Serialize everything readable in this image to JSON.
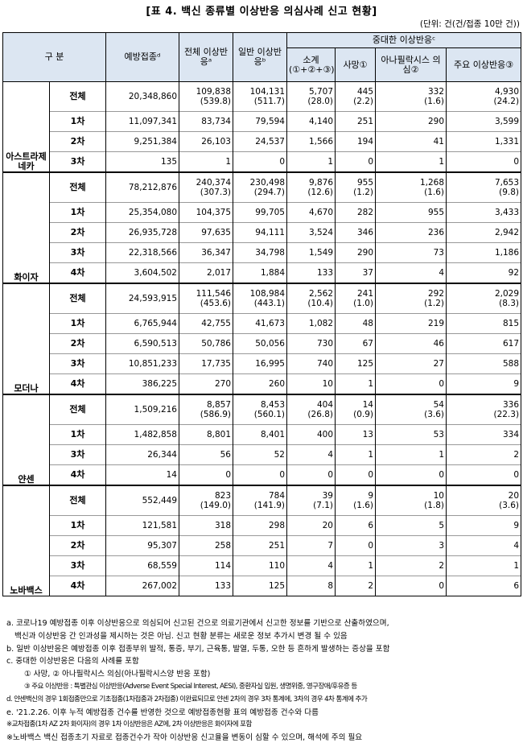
{
  "title": "[표 4. 백신 종류별 이상반응 의심사례 신고 현황]",
  "unit": "(단위: 건(건/접종 10만 건))",
  "headers": {
    "category": "구    분",
    "vaccinations": "예방접종ᵈ",
    "total": "전체 이상반응ᵃ",
    "general": "일반 이상반응ᵇ",
    "serious": "중대한 이상반응ᶜ",
    "subtotal": "소계 (①+②+③)",
    "death": "사망①",
    "anaphylaxis": "아나필락시스 의심②",
    "major": "주요 이상반응③"
  },
  "groups": [
    {
      "name": "아스트라제네카",
      "total": {
        "label": "전체",
        "vaccinations": "20,348,860",
        "total": "109,838",
        "total_rate": "(539.8)",
        "general": "104,131",
        "general_rate": "(511.7)",
        "subtotal": "5,707",
        "subtotal_rate": "(28.0)",
        "death": "445",
        "death_rate": "(2.2)",
        "anaphylaxis": "332",
        "anaphylaxis_rate": "(1.6)",
        "major": "4,930",
        "major_rate": "(24.2)"
      },
      "rows": [
        {
          "label": "1차",
          "vaccinations": "11,097,341",
          "total": "83,734",
          "general": "79,594",
          "subtotal": "4,140",
          "death": "251",
          "anaphylaxis": "290",
          "major": "3,599"
        },
        {
          "label": "2차",
          "vaccinations": "9,251,384",
          "total": "26,103",
          "general": "24,537",
          "subtotal": "1,566",
          "death": "194",
          "anaphylaxis": "41",
          "major": "1,331"
        },
        {
          "label": "3차",
          "vaccinations": "135",
          "total": "1",
          "general": "0",
          "subtotal": "1",
          "death": "0",
          "anaphylaxis": "1",
          "major": "0"
        }
      ]
    },
    {
      "name": "화이자",
      "total": {
        "label": "전체",
        "vaccinations": "78,212,876",
        "total": "240,374",
        "total_rate": "(307.3)",
        "general": "230,498",
        "general_rate": "(294.7)",
        "subtotal": "9,876",
        "subtotal_rate": "(12.6)",
        "death": "955",
        "death_rate": "(1.2)",
        "anaphylaxis": "1,268",
        "anaphylaxis_rate": "(1.6)",
        "major": "7,653",
        "major_rate": "(9.8)"
      },
      "rows": [
        {
          "label": "1차",
          "vaccinations": "25,354,080",
          "total": "104,375",
          "general": "99,705",
          "subtotal": "4,670",
          "death": "282",
          "anaphylaxis": "955",
          "major": "3,433"
        },
        {
          "label": "2차",
          "vaccinations": "26,935,728",
          "total": "97,635",
          "general": "94,111",
          "subtotal": "3,524",
          "death": "346",
          "anaphylaxis": "236",
          "major": "2,942"
        },
        {
          "label": "3차",
          "vaccinations": "22,318,566",
          "total": "36,347",
          "general": "34,798",
          "subtotal": "1,549",
          "death": "290",
          "anaphylaxis": "73",
          "major": "1,186"
        },
        {
          "label": "4차",
          "vaccinations": "3,604,502",
          "total": "2,017",
          "general": "1,884",
          "subtotal": "133",
          "death": "37",
          "anaphylaxis": "4",
          "major": "92"
        }
      ]
    },
    {
      "name": "모더나",
      "total": {
        "label": "전체",
        "vaccinations": "24,593,915",
        "total": "111,546",
        "total_rate": "(453.6)",
        "general": "108,984",
        "general_rate": "(443.1)",
        "subtotal": "2,562",
        "subtotal_rate": "(10.4)",
        "death": "241",
        "death_rate": "(1.0)",
        "anaphylaxis": "292",
        "anaphylaxis_rate": "(1.2)",
        "major": "2,029",
        "major_rate": "(8.3)"
      },
      "rows": [
        {
          "label": "1차",
          "vaccinations": "6,765,944",
          "total": "42,755",
          "general": "41,673",
          "subtotal": "1,082",
          "death": "48",
          "anaphylaxis": "219",
          "major": "815"
        },
        {
          "label": "2차",
          "vaccinations": "6,590,513",
          "total": "50,786",
          "general": "50,056",
          "subtotal": "730",
          "death": "67",
          "anaphylaxis": "46",
          "major": "617"
        },
        {
          "label": "3차",
          "vaccinations": "10,851,233",
          "total": "17,735",
          "general": "16,995",
          "subtotal": "740",
          "death": "125",
          "anaphylaxis": "27",
          "major": "588"
        },
        {
          "label": "4차",
          "vaccinations": "386,225",
          "total": "270",
          "general": "260",
          "subtotal": "10",
          "death": "1",
          "anaphylaxis": "0",
          "major": "9"
        }
      ]
    },
    {
      "name": "얀센",
      "total": {
        "label": "전체",
        "vaccinations": "1,509,216",
        "total": "8,857",
        "total_rate": "(586.9)",
        "general": "8,453",
        "general_rate": "(560.1)",
        "subtotal": "404",
        "subtotal_rate": "(26.8)",
        "death": "14",
        "death_rate": "(0.9)",
        "anaphylaxis": "54",
        "anaphylaxis_rate": "(3.6)",
        "major": "336",
        "major_rate": "(22.3)"
      },
      "rows": [
        {
          "label": "1차",
          "vaccinations": "1,482,858",
          "total": "8,801",
          "general": "8,401",
          "subtotal": "400",
          "death": "13",
          "anaphylaxis": "53",
          "major": "334"
        },
        {
          "label": "3차",
          "vaccinations": "26,344",
          "total": "56",
          "general": "52",
          "subtotal": "4",
          "death": "1",
          "anaphylaxis": "1",
          "major": "2"
        },
        {
          "label": "4차",
          "vaccinations": "14",
          "total": "0",
          "general": "0",
          "subtotal": "0",
          "death": "0",
          "anaphylaxis": "0",
          "major": "0"
        }
      ]
    },
    {
      "name": "노바백스",
      "total": {
        "label": "전체",
        "vaccinations": "552,449",
        "total": "823",
        "total_rate": "(149.0)",
        "general": "784",
        "general_rate": "(141.9)",
        "subtotal": "39",
        "subtotal_rate": "(7.1)",
        "death": "9",
        "death_rate": "(1.6)",
        "anaphylaxis": "10",
        "anaphylaxis_rate": "(1.8)",
        "major": "20",
        "major_rate": "(3.6)"
      },
      "rows": [
        {
          "label": "1차",
          "vaccinations": "121,581",
          "total": "318",
          "general": "298",
          "subtotal": "20",
          "death": "6",
          "anaphylaxis": "5",
          "major": "9"
        },
        {
          "label": "2차",
          "vaccinations": "95,307",
          "total": "258",
          "general": "251",
          "subtotal": "7",
          "death": "0",
          "anaphylaxis": "3",
          "major": "4"
        },
        {
          "label": "3차",
          "vaccinations": "68,559",
          "total": "114",
          "general": "110",
          "subtotal": "4",
          "death": "1",
          "anaphylaxis": "2",
          "major": "1"
        },
        {
          "label": "4차",
          "vaccinations": "267,002",
          "total": "133",
          "general": "125",
          "subtotal": "8",
          "death": "2",
          "anaphylaxis": "0",
          "major": "6"
        }
      ]
    }
  ],
  "notes": [
    "a. 코로나19 예방접종 이후 이상반응으로 의심되어 신고된 건으로 의료기관에서 신고한 정보를 기반으로 산출하였으며,",
    "백신과 이상반응 간 인과성을 제시하는 것은 아님. 신고 현황 분류는 새로운 정보 추가시 변경 될 수 있음",
    "b. 일반 이상반응은 예방접종 이후 접종부위 발적, 통증, 부기, 근육통, 발열, 두통, 오한 등 흔하게 발생하는 증상을 포함",
    "c. 중대한 이상반응은 다음의 사례를 포함",
    "① 사망, ② 아나필락시스 의심(아나필락시스양 반응 포함)",
    "③ 주요 이상반응 : 특별관심 이상반응(Adverse Event Special Interest, AESI), 중환자실 입원, 생명위중, 영구장애/후유증 등",
    "d. 얀센백신의 경우 1회접종만으로 기초접종(1차접종과 2차접종) 이완료되므로 얀센 2차의 경우 3차 통계에, 3차의 경우 4차 통계에 추가",
    "e. '21.2.26. 이후 누적 예방접종 건수를 반영한 것으로 예방접종현황 표의 예방접종 건수와 다름",
    "※교차접종(1차 AZ 2차 화이자)의 경우 1차 이상반응은 AZ에, 2차 이상반응은 화이자에 포함",
    "※노바백스 백신 접종초기 자료로 접종건수가 작아 이상반응 신고율을 변동이 심할 수 있으며, 해석에 주의 필요"
  ]
}
